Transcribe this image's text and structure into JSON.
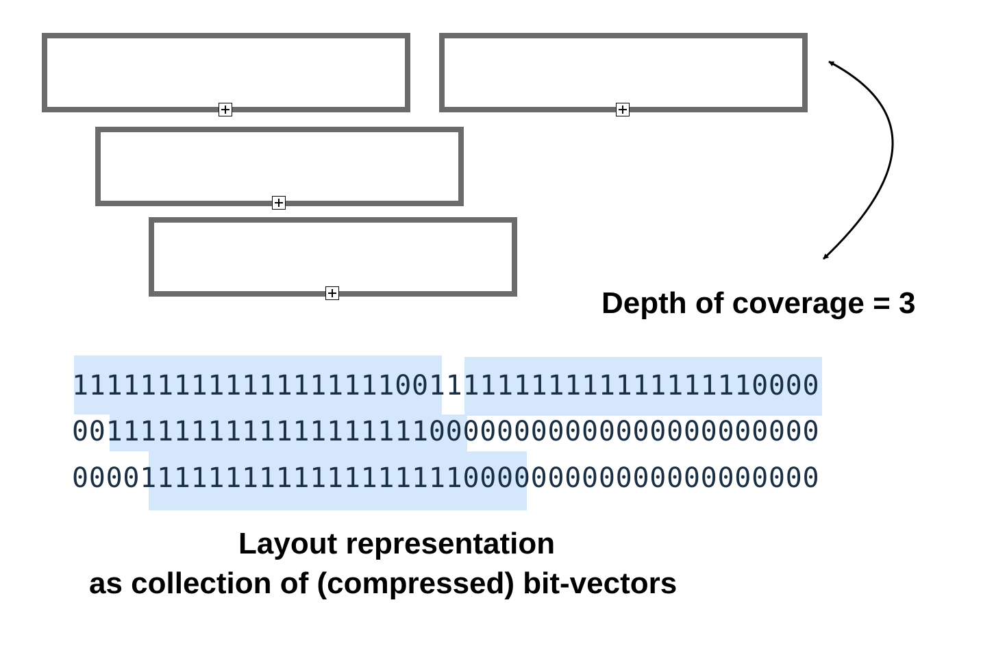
{
  "diagram": {
    "intervals": [
      {
        "id": "read-1"
      },
      {
        "id": "read-2"
      },
      {
        "id": "read-3"
      },
      {
        "id": "read-4"
      }
    ],
    "coverage_label": "Depth of coverage = 3",
    "bit_vectors": [
      "11111111111111111110011111111111111111110000",
      "00111111111111111111100000000000000000000000",
      "00001111111111111111111000000000000000000000"
    ],
    "caption_line1": "Layout representation",
    "caption_line2": "as collection of (compressed) bit-vectors"
  },
  "colors": {
    "box_border": "#6b6b6b",
    "highlight": "#d5e8fb",
    "bits_text": "#1a2e44"
  },
  "icons": {
    "handle": "plus-square-icon",
    "arrow": "double-curved-arrow"
  }
}
